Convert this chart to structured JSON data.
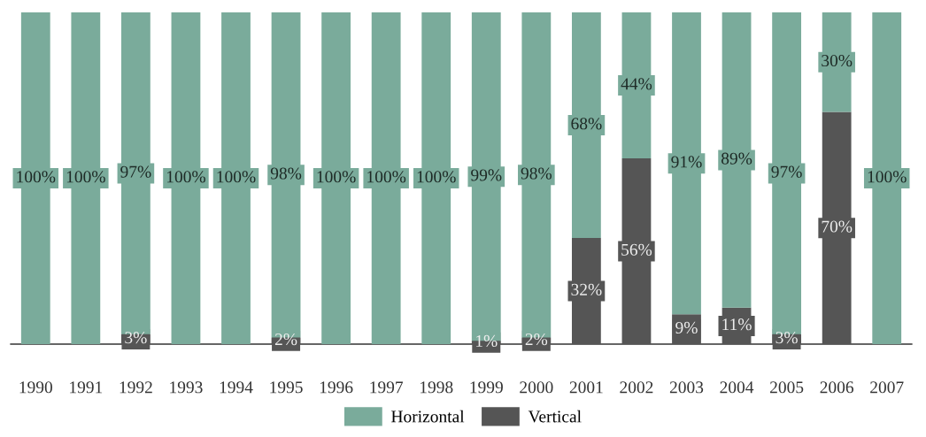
{
  "chart_data": {
    "type": "bar",
    "stacked": true,
    "categories": [
      "1990",
      "1991",
      "1992",
      "1993",
      "1994",
      "1995",
      "1996",
      "1997",
      "1998",
      "1999",
      "2000",
      "2001",
      "2002",
      "2003",
      "2004",
      "2005",
      "2006",
      "2007"
    ],
    "series": [
      {
        "name": "Vertical",
        "color": "#555555",
        "values": [
          null,
          null,
          3,
          null,
          null,
          2,
          null,
          null,
          null,
          1,
          2,
          32,
          56,
          9,
          11,
          3,
          70,
          null
        ],
        "value_labels": [
          null,
          null,
          "3%",
          null,
          null,
          "2%",
          null,
          null,
          null,
          "1%",
          "2%",
          "32%",
          "56%",
          "9%",
          "11%",
          "3%",
          "70%",
          null
        ]
      },
      {
        "name": "Horizontal",
        "color": "#7aab9b",
        "values": [
          100,
          100,
          97,
          100,
          100,
          98,
          100,
          100,
          100,
          99,
          98,
          68,
          44,
          91,
          89,
          97,
          30,
          100
        ],
        "value_labels": [
          "100%",
          "100%",
          "97%",
          "100%",
          "100%",
          "98%",
          "100%",
          "100%",
          "100%",
          "99%",
          "98%",
          "68%",
          "44%",
          "91%",
          "89%",
          "97%",
          "30%",
          "100%"
        ]
      }
    ],
    "legend": "bottom",
    "grid": false,
    "tick_labels": "x"
  }
}
